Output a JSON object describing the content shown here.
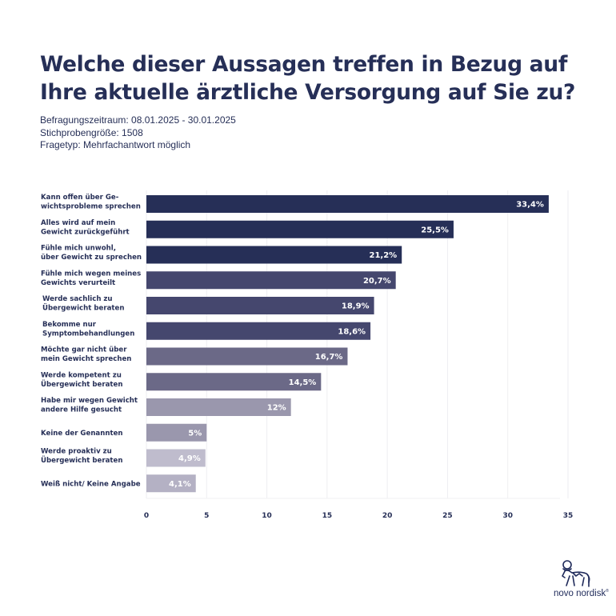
{
  "header": {
    "title_line1": "Welche dieser Aussagen treffen in Bezug auf",
    "title_line2": "Ihre aktuelle ärztliche Versorgung auf Sie zu?",
    "meta": [
      "Befragungszeitraum: 08.01.2025 - 30.01.2025",
      "Stichprobengröße: 1508",
      "Fragetyp: Mehrfachantwort möglich"
    ]
  },
  "chart_data": {
    "type": "bar",
    "orientation": "horizontal",
    "title": "Welche dieser Aussagen treffen in Bezug auf Ihre aktuelle ärztliche Versorgung auf Sie zu?",
    "xlabel": "",
    "ylabel": "",
    "xlim": [
      0,
      35
    ],
    "xticks": [
      0,
      5,
      10,
      15,
      20,
      25,
      30,
      35
    ],
    "grid": true,
    "legend": "none",
    "categories": [
      [
        "Kann offen über Ge-",
        "wichtsprobleme sprechen"
      ],
      [
        "Alles wird auf mein",
        "Gewicht zurückgeführt"
      ],
      [
        "Fühle mich unwohl,",
        "über Gewicht zu sprechen"
      ],
      [
        "Fühle mich wegen meines",
        "Gewichts verurteilt"
      ],
      [
        "Werde sachlich zu",
        "Übergewicht beraten"
      ],
      [
        "Bekomme nur",
        "Symptombehandlungen"
      ],
      [
        "Möchte gar nicht über",
        "mein Gewicht sprechen"
      ],
      [
        "Werde kompetent zu",
        "Übergewicht beraten"
      ],
      [
        "Habe mir wegen Gewicht",
        "andere Hilfe gesucht"
      ],
      [
        "Keine der Genannten"
      ],
      [
        "Werde proaktiv zu",
        "Übergewicht beraten"
      ],
      [
        "Weiß nicht/ Keine Angabe"
      ]
    ],
    "values": [
      33.4,
      25.5,
      21.2,
      20.7,
      18.9,
      18.6,
      16.7,
      14.5,
      12,
      5,
      4.9,
      4.1
    ],
    "value_labels": [
      "33,4%",
      "25,5%",
      "21,2%",
      "20,7%",
      "18,9%",
      "18,6%",
      "16,7%",
      "14,5%",
      "12%",
      "5%",
      "4,9%",
      "4,1%"
    ],
    "colors": [
      "#262f57",
      "#262f57",
      "#262f57",
      "#45476e",
      "#45476e",
      "#45476e",
      "#6b6987",
      "#6b6987",
      "#9a97ad",
      "#9a97ad",
      "#bfbccd",
      "#b4b1c4"
    ]
  },
  "logo": {
    "name": "novo nordisk",
    "mark": "®",
    "icon": "apis-bull-icon"
  }
}
